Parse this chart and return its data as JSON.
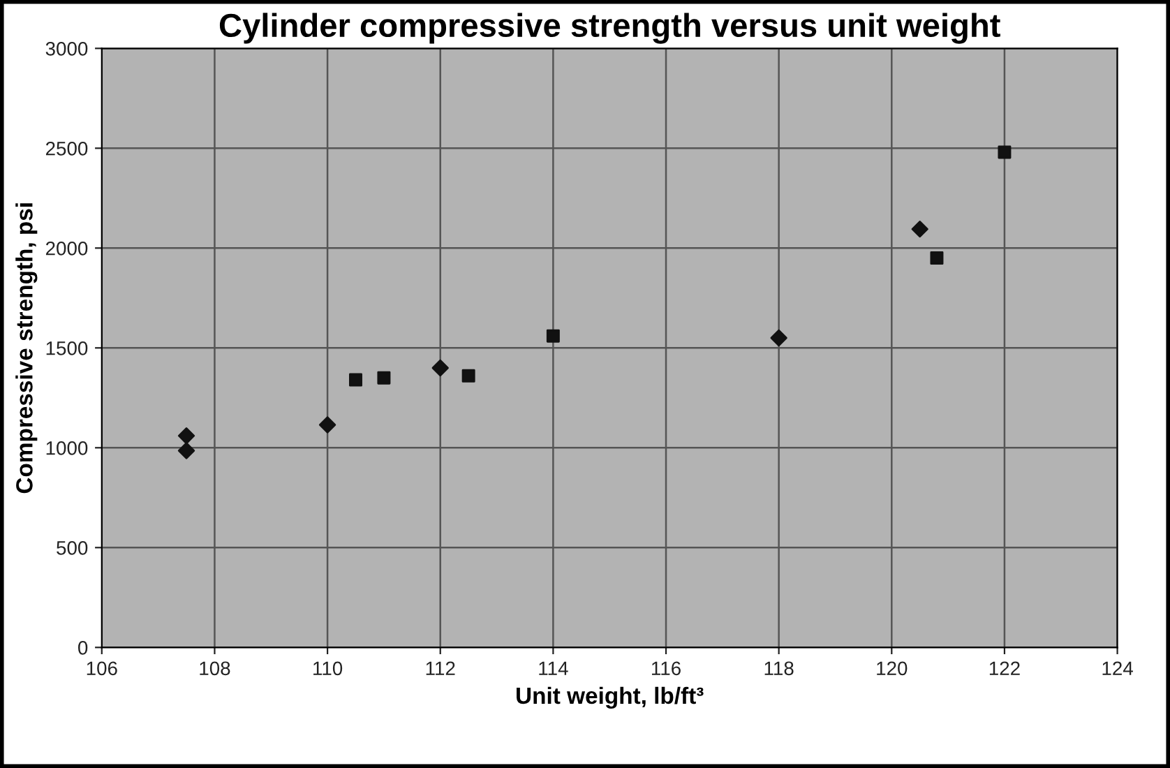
{
  "chart_data": {
    "type": "scatter",
    "title": "Cylinder compressive strength versus unit weight",
    "xlabel": "Unit weight, lb/ft³",
    "ylabel": "Compressive strength, psi",
    "xlim": [
      106,
      124
    ],
    "xticks": [
      106,
      108,
      110,
      112,
      114,
      116,
      118,
      120,
      122,
      124
    ],
    "ylim": [
      0,
      3000
    ],
    "yticks": [
      0,
      500,
      1000,
      1500,
      2000,
      2500,
      3000
    ],
    "grid": true,
    "series": [
      {
        "color": "#111111",
        "marker": "diamond",
        "x": [
          107.5,
          107.5,
          110,
          112,
          118,
          120.5
        ],
        "values": [
          1060,
          985,
          1115,
          1400,
          1550,
          2095
        ]
      },
      {
        "color": "#111111",
        "marker": "square",
        "x": [
          110.5,
          111,
          112.5,
          114,
          120.8,
          122
        ],
        "values": [
          1340,
          1350,
          1360,
          1560,
          1950,
          2480
        ]
      }
    ]
  }
}
